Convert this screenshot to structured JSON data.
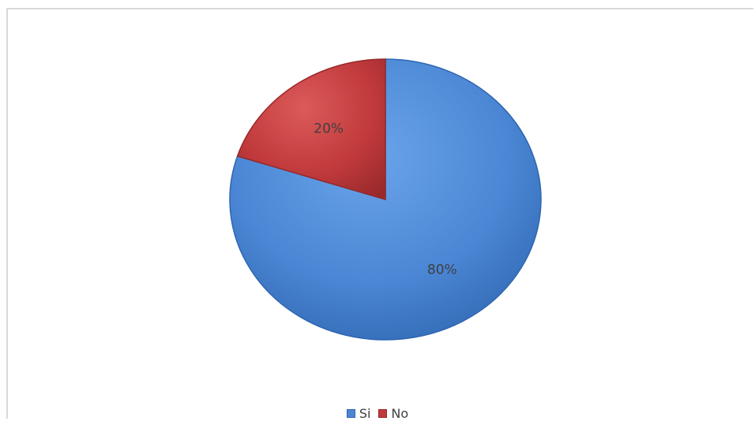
{
  "chart_data": {
    "type": "pie",
    "slices": [
      {
        "label": "Si",
        "value": 80,
        "data_label": "80%",
        "color": "#4a86d4"
      },
      {
        "label": "No",
        "value": 20,
        "data_label": "20%",
        "color": "#c0393b"
      }
    ],
    "legend": {
      "placement": "bottom",
      "items": [
        {
          "label": "Si",
          "color": "#4a86d4"
        },
        {
          "label": "No",
          "color": "#c0393b"
        }
      ]
    }
  }
}
